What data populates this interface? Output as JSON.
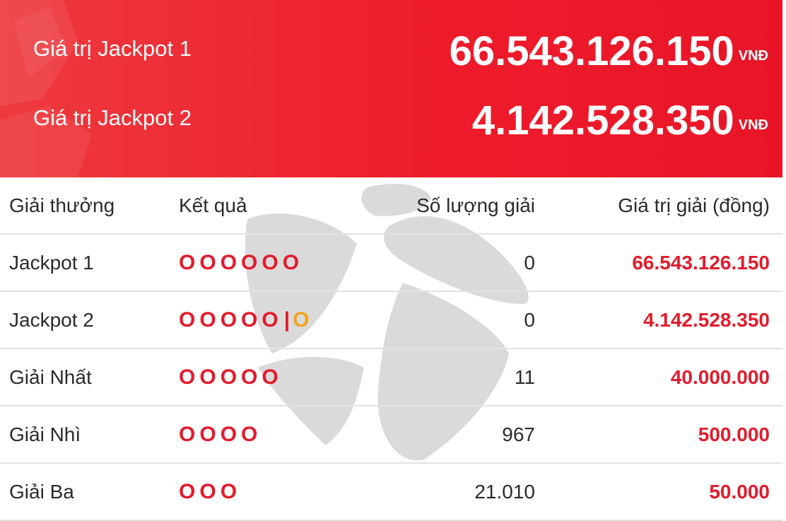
{
  "colors": {
    "banner_red": "#ee1c2b",
    "ball_red": "#e21b2c",
    "special_orange": "#f3a31c",
    "divider": "#e2e2e2"
  },
  "jackpots": [
    {
      "label": "Giá trị Jackpot 1",
      "value": "66.543.126.150",
      "unit": "VNĐ"
    },
    {
      "label": "Giá trị Jackpot 2",
      "value": "4.142.528.350",
      "unit": "VNĐ"
    }
  ],
  "table": {
    "headers": {
      "prize": "Giải thưởng",
      "result": "Kết quả",
      "count": "Số lượng giải",
      "value": "Giá trị giải (đồng)"
    },
    "rows": [
      {
        "name": "Jackpot 1",
        "balls": [
          "O",
          "O",
          "O",
          "O",
          "O",
          "O"
        ],
        "separator": "",
        "special": "",
        "count": "0",
        "value": "66.543.126.150"
      },
      {
        "name": "Jackpot 2",
        "balls": [
          "O",
          "O",
          "O",
          "O",
          "O"
        ],
        "separator": "|",
        "special": "O",
        "count": "0",
        "value": "4.142.528.350"
      },
      {
        "name": "Giải Nhất",
        "balls": [
          "O",
          "O",
          "O",
          "O",
          "O"
        ],
        "separator": "",
        "special": "",
        "count": "11",
        "value": "40.000.000"
      },
      {
        "name": "Giải Nhì",
        "balls": [
          "O",
          "O",
          "O",
          "O"
        ],
        "separator": "",
        "special": "",
        "count": "967",
        "value": "500.000"
      },
      {
        "name": "Giải Ba",
        "balls": [
          "O",
          "O",
          "O"
        ],
        "separator": "",
        "special": "",
        "count": "21.010",
        "value": "50.000"
      }
    ]
  }
}
